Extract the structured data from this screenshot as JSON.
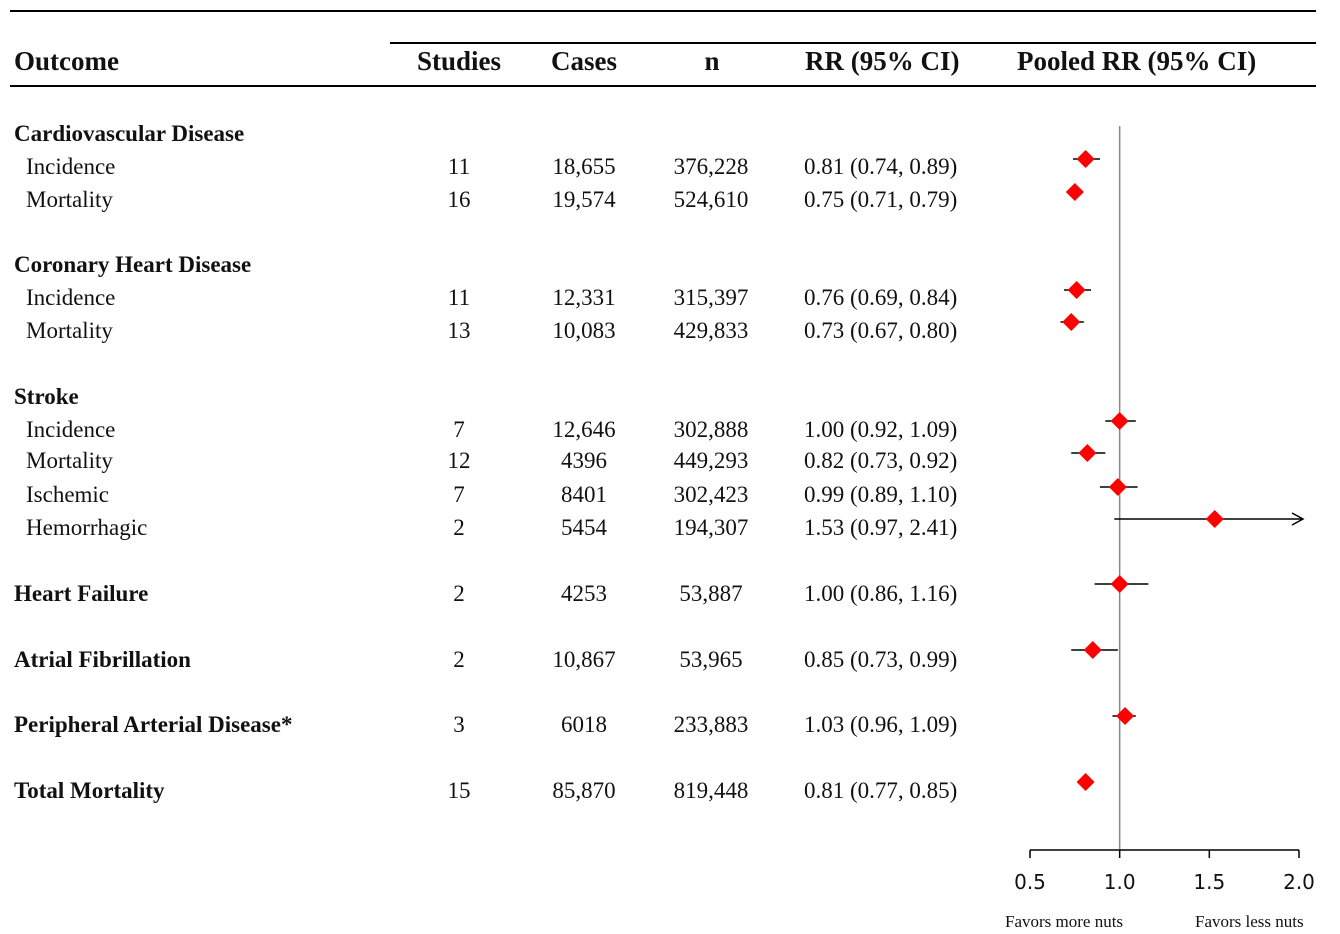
{
  "headers": {
    "outcome": "Outcome",
    "studies": "Studies",
    "cases": "Cases",
    "n": "n",
    "rr": "RR (95% CI)",
    "pooled": "Pooled RR (95% CI)"
  },
  "rows": [
    {
      "label": "Cardiovascular Disease",
      "group": true
    },
    {
      "label": "Incidence",
      "studies": "11",
      "cases": "18,655",
      "n": "376,228",
      "rr_text": "0.81 (0.74, 0.89)"
    },
    {
      "label": "Mortality",
      "studies": "16",
      "cases": "19,574",
      "n": "524,610",
      "rr_text": "0.75 (0.71, 0.79)"
    },
    {
      "label": "Coronary Heart Disease",
      "group": true
    },
    {
      "label": "Incidence",
      "studies": "11",
      "cases": "12,331",
      "n": "315,397",
      "rr_text": "0.76 (0.69, 0.84)"
    },
    {
      "label": "Mortality",
      "studies": "13",
      "cases": "10,083",
      "n": "429,833",
      "rr_text": "0.73 (0.67, 0.80)"
    },
    {
      "label": "Stroke",
      "group": true
    },
    {
      "label": "Incidence",
      "studies": "7",
      "cases": "12,646",
      "n": "302,888",
      "rr_text": "1.00 (0.92, 1.09)"
    },
    {
      "label": "Mortality",
      "studies": "12",
      "cases": "4396",
      "n": "449,293",
      "rr_text": "0.82 (0.73, 0.92)"
    },
    {
      "label": "Ischemic",
      "studies": "7",
      "cases": "8401",
      "n": "302,423",
      "rr_text": "0.99 (0.89, 1.10)"
    },
    {
      "label": "Hemorrhagic",
      "studies": "2",
      "cases": "5454",
      "n": "194,307",
      "rr_text": "1.53 (0.97, 2.41)"
    },
    {
      "label": "Heart Failure",
      "group": true,
      "studies": "2",
      "cases": "4253",
      "n": "53,887",
      "rr_text": "1.00 (0.86, 1.16)"
    },
    {
      "label": "Atrial Fibrillation",
      "group": true,
      "studies": "2",
      "cases": "10,867",
      "n": "53,965",
      "rr_text": "0.85 (0.73, 0.99)"
    },
    {
      "label": "Peripheral Arterial Disease*",
      "group": true,
      "studies": "3",
      "cases": "6018",
      "n": "233,883",
      "rr_text": "1.03 (0.96, 1.09)"
    },
    {
      "label": "Total Mortality",
      "group": true,
      "studies": "15",
      "cases": "85,870",
      "n": "819,448",
      "rr_text": "0.81 (0.77, 0.85)"
    }
  ],
  "footer": {
    "favors_left": "Favors more nuts",
    "favors_right": "Favors less nuts"
  },
  "colors": {
    "marker": "#ff0000",
    "line": "#000000",
    "reference_line": "#888888"
  },
  "chart_data": {
    "type": "forest",
    "title": "",
    "xlabel": "",
    "xlim": [
      0.5,
      2.0
    ],
    "xticks": [
      "0.5",
      "1.0",
      "1.5",
      "2.0"
    ],
    "reference_value": 1.0,
    "grid": false,
    "series": [
      {
        "label": "Cardiovascular Disease – Incidence",
        "rr": 0.81,
        "ci": [
          0.74,
          0.89
        ]
      },
      {
        "label": "Cardiovascular Disease – Mortality",
        "rr": 0.75,
        "ci": [
          0.71,
          0.79
        ]
      },
      {
        "label": "Coronary Heart Disease – Incidence",
        "rr": 0.76,
        "ci": [
          0.69,
          0.84
        ]
      },
      {
        "label": "Coronary Heart Disease – Mortality",
        "rr": 0.73,
        "ci": [
          0.67,
          0.8
        ]
      },
      {
        "label": "Stroke – Incidence",
        "rr": 1.0,
        "ci": [
          0.92,
          1.09
        ]
      },
      {
        "label": "Stroke – Mortality",
        "rr": 0.82,
        "ci": [
          0.73,
          0.92
        ]
      },
      {
        "label": "Stroke – Ischemic",
        "rr": 0.99,
        "ci": [
          0.89,
          1.1
        ]
      },
      {
        "label": "Stroke – Hemorrhagic",
        "rr": 1.53,
        "ci": [
          0.97,
          2.41
        ]
      },
      {
        "label": "Heart Failure",
        "rr": 1.0,
        "ci": [
          0.86,
          1.16
        ]
      },
      {
        "label": "Atrial Fibrillation",
        "rr": 0.85,
        "ci": [
          0.73,
          0.99
        ]
      },
      {
        "label": "Peripheral Arterial Disease*",
        "rr": 1.03,
        "ci": [
          0.96,
          1.09
        ]
      },
      {
        "label": "Total Mortality",
        "rr": 0.81,
        "ci": [
          0.77,
          0.85
        ]
      }
    ]
  }
}
